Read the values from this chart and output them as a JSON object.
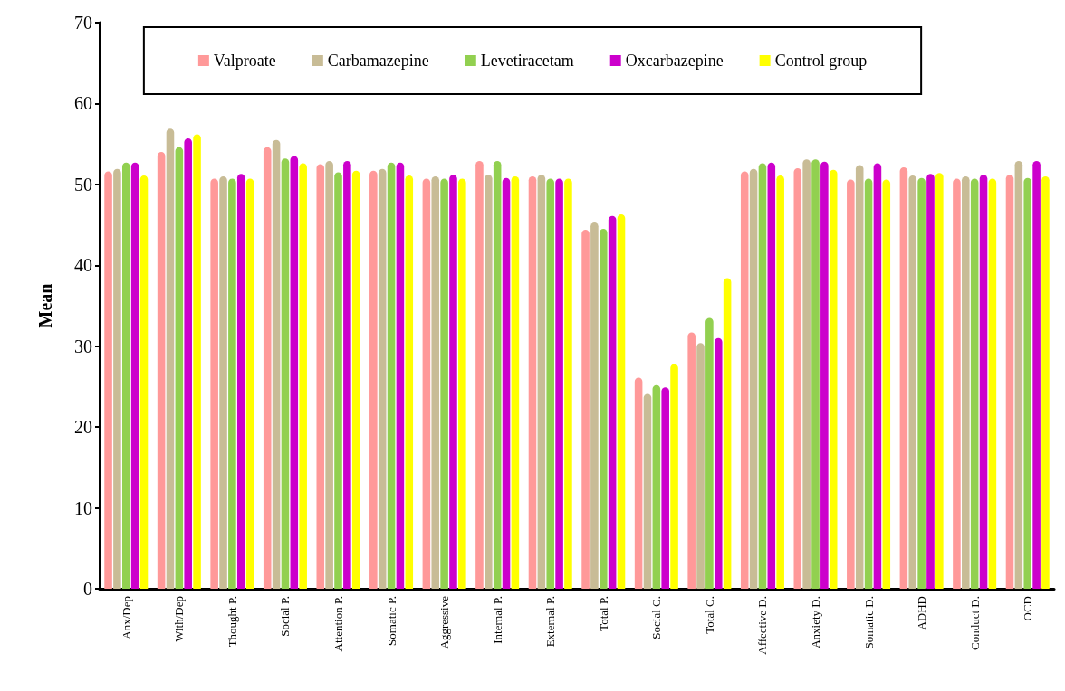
{
  "chart_data": {
    "type": "bar",
    "ylabel": "Mean",
    "categories": [
      "Anx/Dep",
      "With/Dep",
      "Thought P.",
      "Social P.",
      "Attention P.",
      "Somatic P.",
      "Aggressive",
      "Internal P.",
      "External P.",
      "Total P.",
      "Social C.",
      "Total C.",
      "Affective D.",
      "Anxiety D.",
      "Somatic D.",
      "ADHD",
      "Conduct D.",
      "OCD"
    ],
    "series": [
      {
        "name": "Valproate",
        "color": "#ff9999",
        "values": [
          51.6,
          54.0,
          50.7,
          54.6,
          52.5,
          51.7,
          50.7,
          52.9,
          51.0,
          44.4,
          26.1,
          31.7,
          51.6,
          52.0,
          50.6,
          52.1,
          50.7,
          51.2
        ]
      },
      {
        "name": "Carbamazepine",
        "color": "#c8bc96",
        "values": [
          51.9,
          56.9,
          51.0,
          55.5,
          52.9,
          51.9,
          51.0,
          51.2,
          51.2,
          45.3,
          24.1,
          30.4,
          51.9,
          53.1,
          52.4,
          51.1,
          51.0,
          52.9
        ]
      },
      {
        "name": "Levetiracetam",
        "color": "#92d050",
        "values": [
          52.7,
          54.6,
          50.7,
          53.2,
          51.5,
          52.7,
          50.7,
          52.9,
          50.7,
          44.5,
          25.2,
          33.5,
          52.6,
          53.1,
          50.7,
          50.8,
          50.7,
          50.8
        ]
      },
      {
        "name": "Oxcarbazepine",
        "color": "#cc00cc",
        "values": [
          52.7,
          55.7,
          51.3,
          53.5,
          52.9,
          52.7,
          51.2,
          50.8,
          50.7,
          46.1,
          24.9,
          31.0,
          52.7,
          52.8,
          52.6,
          51.3,
          51.2,
          52.9
        ]
      },
      {
        "name": "Control group",
        "color": "#ffff00",
        "values": [
          51.1,
          56.2,
          50.7,
          52.6,
          51.7,
          51.1,
          50.7,
          51.0,
          50.7,
          46.3,
          27.8,
          38.4,
          51.1,
          51.8,
          50.6,
          51.4,
          50.7,
          51.0
        ]
      }
    ],
    "ylim": [
      0,
      70
    ],
    "yticks": [
      0,
      10,
      20,
      30,
      40,
      50,
      60,
      70
    ],
    "grid": false,
    "legend": "top"
  }
}
